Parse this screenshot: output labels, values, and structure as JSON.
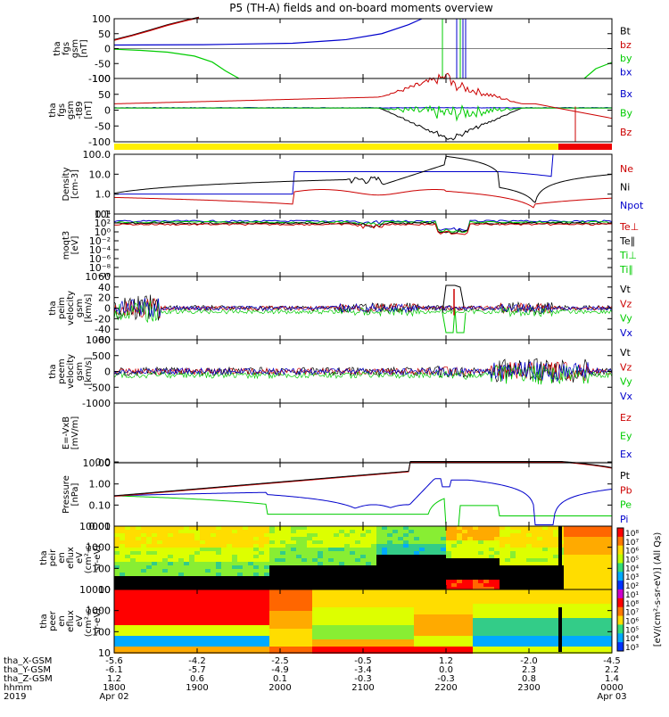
{
  "title": "P5 (TH-A) fields and on-board moments overview",
  "chart_data": {
    "type": "line",
    "title": "P5 (TH-A) fields and on-board moments overview",
    "time_axis": {
      "hhmm": [
        "1800",
        "1900",
        "2000",
        "2100",
        "2200",
        "2300",
        "0000"
      ],
      "dates": {
        "1800": "Apr 02",
        "0000": "Apr 03"
      },
      "year": "2019",
      "rows": [
        {
          "label": "tha_X-GSM",
          "values": [
            "-5.6",
            "-4.2",
            "-2.5",
            "-0.5",
            "1.2",
            "-2.0",
            "-4.5"
          ]
        },
        {
          "label": "tha_Y-GSM",
          "values": [
            "-6.1",
            "-5.7",
            "-4.9",
            "-3.4",
            "0.0",
            "2.3",
            "2.2"
          ]
        },
        {
          "label": "tha_Z-GSM",
          "values": [
            "1.2",
            "0.6",
            "0.1",
            "-0.3",
            "-0.3",
            "0.8",
            "1.4"
          ]
        },
        {
          "label": "hhmm",
          "values": [
            "1800",
            "1900",
            "2000",
            "2100",
            "2200",
            "2300",
            "0000"
          ]
        }
      ]
    },
    "panels": [
      {
        "id": "fgs_gsm",
        "ylabel": [
          "tha",
          "fgs",
          "gsm",
          "[nT]"
        ],
        "ticks": [
          "100",
          "50",
          "0",
          "-50",
          "-100"
        ],
        "legend": [
          {
            "name": "Bt",
            "color": "#000000"
          },
          {
            "name": "bz",
            "color": "#cc0000"
          },
          {
            "name": "by",
            "color": "#00cc00"
          },
          {
            "name": "bx",
            "color": "#0000cc"
          }
        ],
        "series": [
          {
            "name": "Bt",
            "color": "#000000",
            "x": [
              0,
              20,
              40,
              60,
              80,
              95
            ],
            "y": [
              30,
              45,
              62,
              80,
              95,
              105
            ]
          },
          {
            "name": "bz",
            "color": "#cc0000",
            "x": [
              0,
              20,
              40,
              60,
              80,
              95
            ],
            "y": [
              28,
              43,
              60,
              78,
              93,
              103
            ]
          },
          {
            "name": "by",
            "color": "#00cc00",
            "x": [
              0,
              30,
              60,
              90,
              110,
              125,
              140
            ],
            "y": [
              -2,
              -6,
              -12,
              -25,
              -45,
              -75,
              -100
            ]
          },
          {
            "name": "bx",
            "color": "#0000cc",
            "x": [
              0,
              100,
              200,
              260,
              300,
              330,
              345
            ],
            "y": [
              12,
              13,
              18,
              30,
              50,
              80,
              100
            ]
          }
        ]
      },
      {
        "id": "fgs_gsm_t89",
        "ylabel": [
          "tha",
          "fgs",
          "gsm",
          "-t89",
          "[nT]"
        ],
        "ticks": [
          "100",
          "50",
          "0",
          "-50",
          "-100"
        ],
        "legend": [
          {
            "name": "Bx",
            "color": "#0000cc"
          },
          {
            "name": "By",
            "color": "#00cc00"
          },
          {
            "name": "Bz",
            "color": "#cc0000"
          }
        ]
      },
      {
        "id": "density",
        "ylabel": [
          "Density",
          "[cm-3]"
        ],
        "ticks": [
          "100.0",
          "10.0",
          "1.0",
          "0.1"
        ],
        "scale": "log",
        "legend": [
          {
            "name": "Ne",
            "color": "#cc0000"
          },
          {
            "name": "Ni",
            "color": "#000000"
          },
          {
            "name": "Npot",
            "color": "#0000cc"
          }
        ]
      },
      {
        "id": "temperature",
        "ylabel": [
          "moqt3",
          "[eV]"
        ],
        "ticks": [
          "10⁴",
          "10²",
          "10⁰",
          "10⁻²",
          "10⁻⁴",
          "10⁻⁶",
          "10⁻⁸",
          "10⁻¹⁰"
        ],
        "scale": "log",
        "legend": [
          {
            "name": "Te⊥",
            "color": "#cc0000"
          },
          {
            "name": "Te∥",
            "color": "#000000"
          },
          {
            "name": "Ti⊥",
            "color": "#00cc00"
          },
          {
            "name": "Ti∥",
            "color": "#00cc00"
          }
        ]
      },
      {
        "id": "peim_velocity",
        "ylabel": [
          "tha",
          "peim",
          "velocity",
          "gsm",
          "[km/s]"
        ],
        "ticks": [
          "60",
          "40",
          "20",
          "0",
          "-20",
          "-40",
          "-60"
        ],
        "legend": [
          {
            "name": "Vt",
            "color": "#000000"
          },
          {
            "name": "Vz",
            "color": "#cc0000"
          },
          {
            "name": "Vy",
            "color": "#00cc00"
          },
          {
            "name": "Vx",
            "color": "#0000cc"
          }
        ]
      },
      {
        "id": "peem_velocity",
        "ylabel": [
          "tha",
          "peem",
          "velocity",
          "gsm",
          "[km/s]"
        ],
        "ticks": [
          "1000",
          "500",
          "0",
          "-500",
          "-1000"
        ],
        "legend": [
          {
            "name": "Vt",
            "color": "#000000"
          },
          {
            "name": "Vz",
            "color": "#cc0000"
          },
          {
            "name": "Vy",
            "color": "#00cc00"
          },
          {
            "name": "Vx",
            "color": "#0000cc"
          }
        ]
      },
      {
        "id": "efield",
        "ylabel": [
          "E=-VxB",
          "[mV/m]"
        ],
        "ticks": [
          "0.0"
        ],
        "legend": [
          {
            "name": "Ez",
            "color": "#cc0000"
          },
          {
            "name": "Ey",
            "color": "#00cc00"
          },
          {
            "name": "Ex",
            "color": "#0000cc"
          }
        ]
      },
      {
        "id": "pressure",
        "ylabel": [
          "Pressure",
          "[nPa]"
        ],
        "ticks": [
          "10.00",
          "1.00",
          "0.10",
          "0.01"
        ],
        "scale": "log",
        "legend": [
          {
            "name": "Pt",
            "color": "#000000"
          },
          {
            "name": "Pb",
            "color": "#cc0000"
          },
          {
            "name": "Pe",
            "color": "#00cc00"
          },
          {
            "name": "Pi",
            "color": "#0000cc"
          }
        ]
      },
      {
        "id": "peir_eflux",
        "ylabel": [
          "tha",
          "peir",
          "en",
          "eflux",
          "eV",
          "(cm²-s-",
          "sr-eV)"
        ],
        "ticks": [
          "10000",
          "1000",
          "100",
          "10"
        ],
        "type": "heatmap"
      },
      {
        "id": "peer_eflux",
        "ylabel": [
          "tha",
          "peer",
          "en",
          "eflux",
          "eV",
          "(cm²-s-",
          "sr-eV)"
        ],
        "ticks": [
          "10000",
          "1000",
          "100",
          "10"
        ],
        "type": "heatmap"
      }
    ],
    "colorbar": {
      "label": "[eV/(cm²-s-sr-eV)] (All Qs)",
      "ticks": [
        "10⁸",
        "10⁷",
        "10⁶",
        "10⁵",
        "10⁴",
        "10³",
        "10²",
        "10¹",
        "10⁸",
        "10⁷",
        "10⁶",
        "10⁵",
        "10⁴",
        "10³"
      ]
    }
  }
}
